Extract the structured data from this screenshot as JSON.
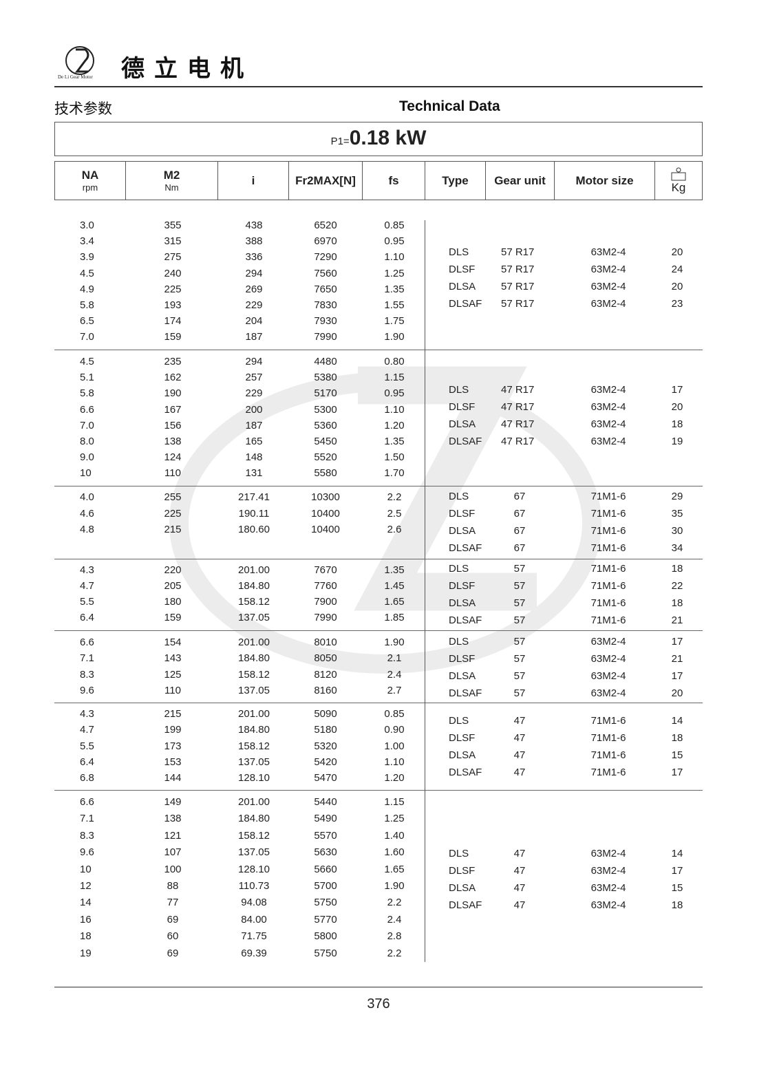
{
  "header": {
    "brand_cn": "德立电机",
    "logo_text": "De Li Gear Motor",
    "section_cn": "技术参数",
    "section_en": "Technical Data"
  },
  "power": {
    "label": "P1=",
    "value": "0.18 kW"
  },
  "columns": {
    "na": "NA",
    "na_unit": "rpm",
    "m2": "M2",
    "m2_unit": "Nm",
    "i": "i",
    "fr": "Fr2MAX[N]",
    "fs": "fs",
    "type": "Type",
    "gear_unit": "Gear unit",
    "motor_size": "Motor size",
    "weight_unit": "Kg",
    "weight_icon": "weight-icon"
  },
  "groups": [
    {
      "rows": [
        [
          "3.0",
          "355",
          "438",
          "6520",
          "0.85"
        ],
        [
          "3.4",
          "315",
          "388",
          "6970",
          "0.95"
        ],
        [
          "3.9",
          "275",
          "336",
          "7290",
          "1.10"
        ],
        [
          "4.5",
          "240",
          "294",
          "7560",
          "1.25"
        ],
        [
          "4.9",
          "225",
          "269",
          "7650",
          "1.35"
        ],
        [
          "5.8",
          "193",
          "229",
          "7830",
          "1.55"
        ],
        [
          "6.5",
          "174",
          "204",
          "7930",
          "1.75"
        ],
        [
          "7.0",
          "159",
          "187",
          "7990",
          "1.90"
        ]
      ],
      "types": [
        [
          "DLS",
          "57 R17",
          "63M2-4",
          "20"
        ],
        [
          "DLSF",
          "57 R17",
          "63M2-4",
          "24"
        ],
        [
          "DLSA",
          "57 R17",
          "63M2-4",
          "20"
        ],
        [
          "DLSAF",
          "57 R17",
          "63M2-4",
          "23"
        ]
      ]
    },
    {
      "rows": [
        [
          "4.5",
          "235",
          "294",
          "4480",
          "0.80"
        ],
        [
          "5.1",
          "162",
          "257",
          "5380",
          "1.15"
        ],
        [
          "5.8",
          "190",
          "229",
          "5170",
          "0.95"
        ],
        [
          "6.6",
          "167",
          "200",
          "5300",
          "1.10"
        ],
        [
          "7.0",
          "156",
          "187",
          "5360",
          "1.20"
        ],
        [
          "8.0",
          "138",
          "165",
          "5450",
          "1.35"
        ],
        [
          "9.0",
          "124",
          "148",
          "5520",
          "1.50"
        ],
        [
          "10",
          "110",
          "131",
          "5580",
          "1.70"
        ]
      ],
      "types": [
        [
          "DLS",
          "47 R17",
          "63M2-4",
          "17"
        ],
        [
          "DLSF",
          "47 R17",
          "63M2-4",
          "20"
        ],
        [
          "DLSA",
          "47 R17",
          "63M2-4",
          "18"
        ],
        [
          "DLSAF",
          "47 R17",
          "63M2-4",
          "19"
        ]
      ]
    },
    {
      "rows": [
        [
          "4.0",
          "255",
          "217.41",
          "10300",
          "2.2"
        ],
        [
          "4.6",
          "225",
          "190.11",
          "10400",
          "2.5"
        ],
        [
          "4.8",
          "215",
          "180.60",
          "10400",
          "2.6"
        ]
      ],
      "types": [
        [
          "DLS",
          "67",
          "71M1-6",
          "29"
        ],
        [
          "DLSF",
          "67",
          "71M1-6",
          "35"
        ],
        [
          "DLSA",
          "67",
          "71M1-6",
          "30"
        ],
        [
          "DLSAF",
          "67",
          "71M1-6",
          "34"
        ]
      ]
    },
    {
      "rows": [
        [
          "4.3",
          "220",
          "201.00",
          "7670",
          "1.35"
        ],
        [
          "4.7",
          "205",
          "184.80",
          "7760",
          "1.45"
        ],
        [
          "5.5",
          "180",
          "158.12",
          "7900",
          "1.65"
        ],
        [
          "6.4",
          "159",
          "137.05",
          "7990",
          "1.85"
        ]
      ],
      "types": [
        [
          "DLS",
          "57",
          "71M1-6",
          "18"
        ],
        [
          "DLSF",
          "57",
          "71M1-6",
          "22"
        ],
        [
          "DLSA",
          "57",
          "71M1-6",
          "18"
        ],
        [
          "DLSAF",
          "57",
          "71M1-6",
          "21"
        ]
      ]
    },
    {
      "rows": [
        [
          "6.6",
          "154",
          "201.00",
          "8010",
          "1.90"
        ],
        [
          "7.1",
          "143",
          "184.80",
          "8050",
          "2.1"
        ],
        [
          "8.3",
          "125",
          "158.12",
          "8120",
          "2.4"
        ],
        [
          "9.6",
          "110",
          "137.05",
          "8160",
          "2.7"
        ]
      ],
      "types": [
        [
          "DLS",
          "57",
          "63M2-4",
          "17"
        ],
        [
          "DLSF",
          "57",
          "63M2-4",
          "21"
        ],
        [
          "DLSA",
          "57",
          "63M2-4",
          "17"
        ],
        [
          "DLSAF",
          "57",
          "63M2-4",
          "20"
        ]
      ]
    },
    {
      "rows": [
        [
          "4.3",
          "215",
          "201.00",
          "5090",
          "0.85"
        ],
        [
          "4.7",
          "199",
          "184.80",
          "5180",
          "0.90"
        ],
        [
          "5.5",
          "173",
          "158.12",
          "5320",
          "1.00"
        ],
        [
          "6.4",
          "153",
          "137.05",
          "5420",
          "1.10"
        ],
        [
          "6.8",
          "144",
          "128.10",
          "5470",
          "1.20"
        ]
      ],
      "types": [
        [
          "DLS",
          "47",
          "71M1-6",
          "14"
        ],
        [
          "DLSF",
          "47",
          "71M1-6",
          "18"
        ],
        [
          "DLSA",
          "47",
          "71M1-6",
          "15"
        ],
        [
          "DLSAF",
          "47",
          "71M1-6",
          "17"
        ]
      ]
    },
    {
      "rows": [
        [
          "6.6",
          "149",
          "201.00",
          "5440",
          "1.15"
        ],
        [
          "7.1",
          "138",
          "184.80",
          "5490",
          "1.25"
        ],
        [
          "8.3",
          "121",
          "158.12",
          "5570",
          "1.40"
        ],
        [
          "9.6",
          "107",
          "137.05",
          "5630",
          "1.60"
        ],
        [
          "10",
          "100",
          "128.10",
          "5660",
          "1.65"
        ],
        [
          "12",
          "88",
          "110.73",
          "5700",
          "1.90"
        ],
        [
          "14",
          "77",
          "94.08",
          "5750",
          "2.2"
        ],
        [
          "16",
          "69",
          "84.00",
          "5770",
          "2.4"
        ],
        [
          "18",
          "60",
          "71.75",
          "5800",
          "2.8"
        ],
        [
          "19",
          "69",
          "69.39",
          "5750",
          "2.2"
        ]
      ],
      "types": [
        [
          "DLS",
          "47",
          "63M2-4",
          "14"
        ],
        [
          "DLSF",
          "47",
          "63M2-4",
          "17"
        ],
        [
          "DLSA",
          "47",
          "63M2-4",
          "15"
        ],
        [
          "DLSAF",
          "47",
          "63M2-4",
          "18"
        ]
      ]
    }
  ],
  "footer": {
    "page_number": "376"
  }
}
